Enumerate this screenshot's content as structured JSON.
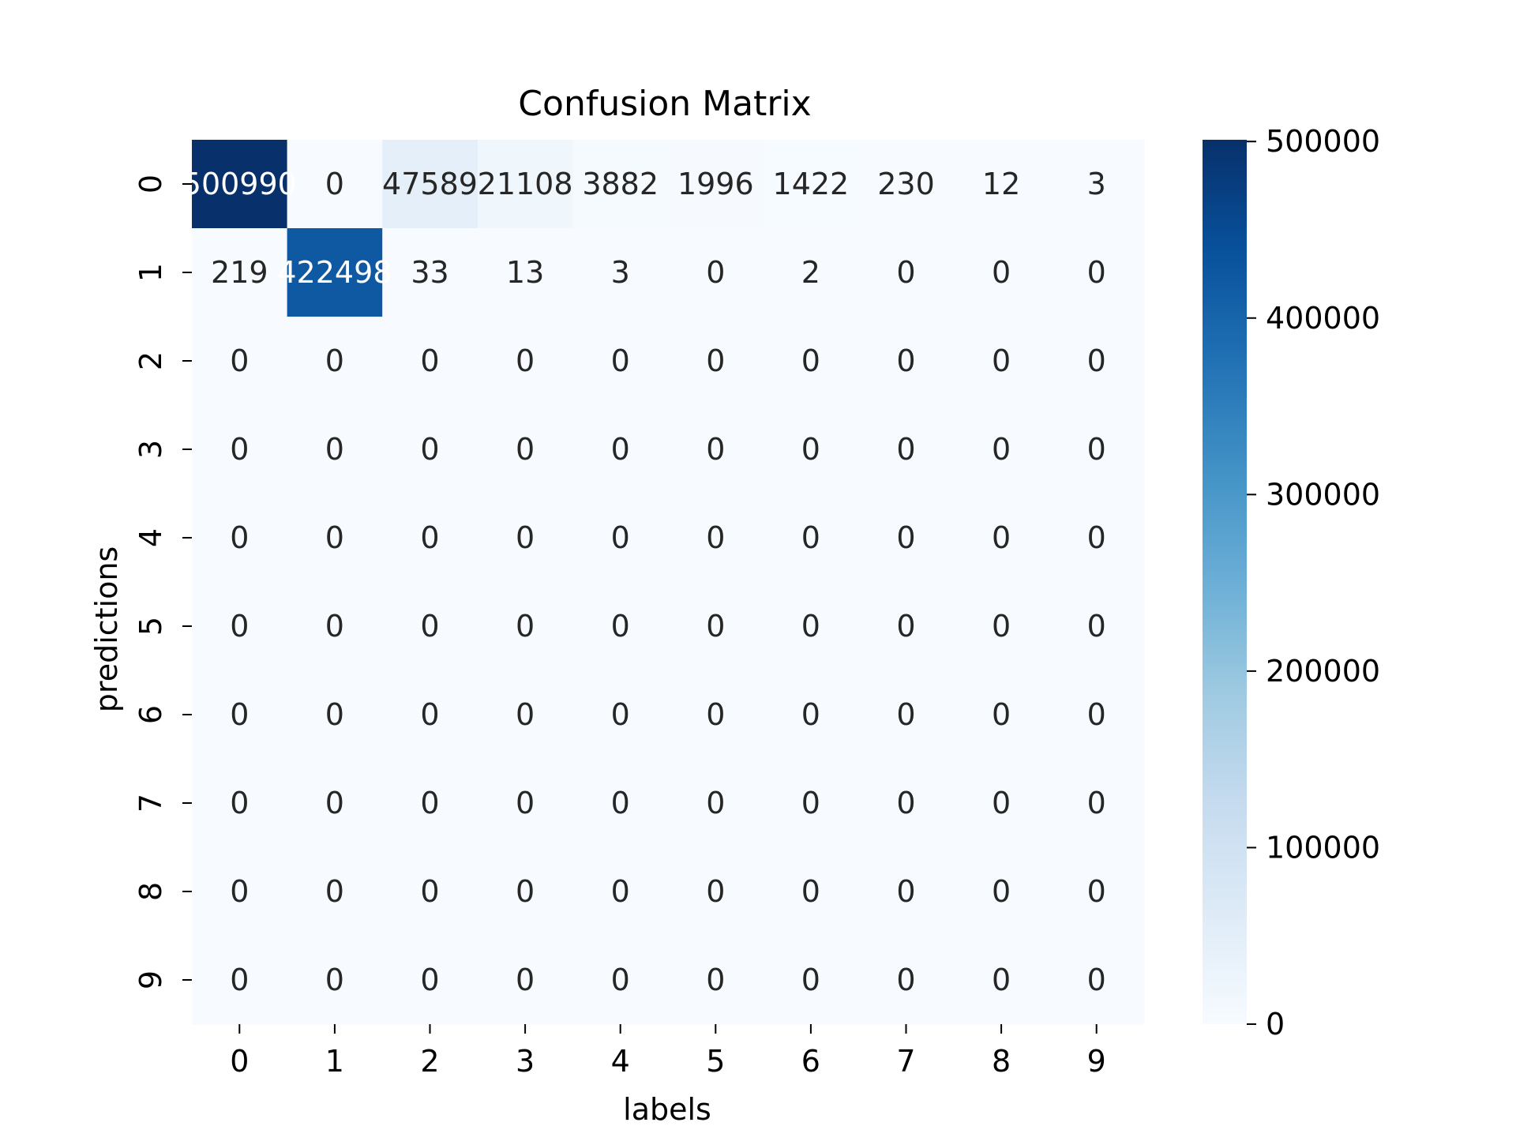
{
  "chart_data": {
    "type": "heatmap",
    "title": "Confusion Matrix",
    "xlabel": "labels",
    "ylabel": "predictions",
    "x_categories": [
      "0",
      "1",
      "2",
      "3",
      "4",
      "5",
      "6",
      "7",
      "8",
      "9"
    ],
    "y_categories": [
      "0",
      "1",
      "2",
      "3",
      "4",
      "5",
      "6",
      "7",
      "8",
      "9"
    ],
    "cell_labels": [
      [
        "500990",
        "0",
        "47589",
        "21108",
        "3882",
        "1996",
        "1422",
        "230",
        "12",
        "3"
      ],
      [
        "219",
        "422498",
        "33",
        "13",
        "3",
        "0",
        "2",
        "0",
        "0",
        "0"
      ],
      [
        "0",
        "0",
        "0",
        "0",
        "0",
        "0",
        "0",
        "0",
        "0",
        "0"
      ],
      [
        "0",
        "0",
        "0",
        "0",
        "0",
        "0",
        "0",
        "0",
        "0",
        "0"
      ],
      [
        "0",
        "0",
        "0",
        "0",
        "0",
        "0",
        "0",
        "0",
        "0",
        "0"
      ],
      [
        "0",
        "0",
        "0",
        "0",
        "0",
        "0",
        "0",
        "0",
        "0",
        "0"
      ],
      [
        "0",
        "0",
        "0",
        "0",
        "0",
        "0",
        "0",
        "0",
        "0",
        "0"
      ],
      [
        "0",
        "0",
        "0",
        "0",
        "0",
        "0",
        "0",
        "0",
        "0",
        "0"
      ],
      [
        "0",
        "0",
        "0",
        "0",
        "0",
        "0",
        "0",
        "0",
        "0",
        "0"
      ],
      [
        "0",
        "0",
        "0",
        "0",
        "0",
        "0",
        "0",
        "0",
        "0",
        "0"
      ]
    ],
    "values": [
      [
        500990,
        0,
        47589,
        21108,
        3882,
        1996,
        1422,
        230,
        12,
        3
      ],
      [
        219,
        422498,
        33,
        13,
        3,
        0,
        2,
        0,
        0,
        0
      ],
      [
        0,
        0,
        0,
        0,
        0,
        0,
        0,
        0,
        0,
        0
      ],
      [
        0,
        0,
        0,
        0,
        0,
        0,
        0,
        0,
        0,
        0
      ],
      [
        0,
        0,
        0,
        0,
        0,
        0,
        0,
        0,
        0,
        0
      ],
      [
        0,
        0,
        0,
        0,
        0,
        0,
        0,
        0,
        0,
        0
      ],
      [
        0,
        0,
        0,
        0,
        0,
        0,
        0,
        0,
        0,
        0
      ],
      [
        0,
        0,
        0,
        0,
        0,
        0,
        0,
        0,
        0,
        0
      ],
      [
        0,
        0,
        0,
        0,
        0,
        0,
        0,
        0,
        0,
        0
      ],
      [
        0,
        0,
        0,
        0,
        0,
        0,
        0,
        0,
        0,
        0
      ]
    ],
    "colormap": "Blues",
    "colorbar": {
      "range": [
        0,
        500990
      ],
      "ticks": [
        0,
        100000,
        200000,
        300000,
        400000,
        500000
      ],
      "tick_labels": [
        "0",
        "100000",
        "200000",
        "300000",
        "400000",
        "500000"
      ]
    },
    "colors": {
      "blues_scale": [
        "#f7fbff",
        "#deebf7",
        "#c6dbef",
        "#9ecae1",
        "#6baed6",
        "#4292c6",
        "#2171b5",
        "#08519c",
        "#08306b"
      ],
      "text_dark": "#262626",
      "text_light": "#ffffff"
    }
  }
}
